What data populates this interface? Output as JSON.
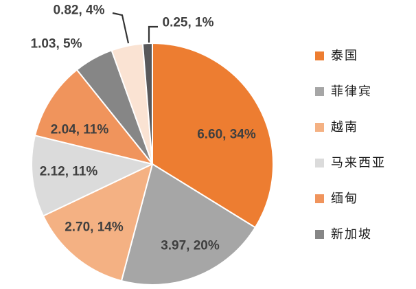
{
  "chart_data": {
    "type": "pie",
    "title": "",
    "direction": "clockwise",
    "start_angle_deg": 0,
    "legend_position": "right",
    "label_format": "value, percent",
    "label_color": "#3F3F3F",
    "leader_line_color": "#333333",
    "slice_border_color": "#FFFFFF",
    "series": [
      {
        "name": "泰国",
        "value": 6.6,
        "pct": 34,
        "label": "6.60, 34%",
        "color": "#ED7D31"
      },
      {
        "name": "菲律宾",
        "value": 3.97,
        "pct": 20,
        "label": "3.97, 20%",
        "color": "#A6A6A6"
      },
      {
        "name": "越南",
        "value": 2.7,
        "pct": 14,
        "label": "2.70, 14%",
        "color": "#F4B183"
      },
      {
        "name": "马来西亚",
        "value": 2.12,
        "pct": 11,
        "label": "2.12, 11%",
        "color": "#DBDBDB"
      },
      {
        "name": "缅甸",
        "value": 2.04,
        "pct": 11,
        "label": "2.04, 11%",
        "color": "#F0945C"
      },
      {
        "name": "新加坡",
        "value": 1.03,
        "pct": 5,
        "label": "1.03, 5%",
        "color": "#868686"
      },
      {
        "name": "",
        "value": 0.82,
        "pct": 4,
        "label": "0.82, 4%",
        "color": "#FAE3D3"
      },
      {
        "name": "",
        "value": 0.25,
        "pct": 1,
        "label": "0.25, 1%",
        "color": "#58585A"
      }
    ],
    "legend": [
      {
        "label": "泰国",
        "color": "#ED7D31"
      },
      {
        "label": "菲律宾",
        "color": "#A6A6A6"
      },
      {
        "label": "越南",
        "color": "#F4B183"
      },
      {
        "label": "马来西亚",
        "color": "#DBDBDB"
      },
      {
        "label": "缅甸",
        "color": "#F0945C"
      },
      {
        "label": "新加坡",
        "color": "#868686"
      }
    ]
  }
}
